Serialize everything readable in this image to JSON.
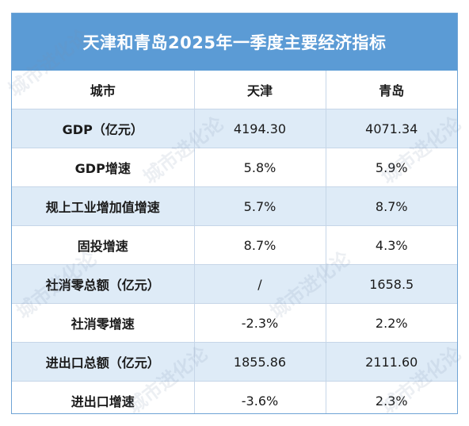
{
  "title": "天津和青岛2025年一季度主要经济指标",
  "header": {
    "col1": "城市",
    "col2": "天津",
    "col3": "青岛"
  },
  "rows": [
    {
      "label": "GDP（亿元）",
      "tianjin": "4194.30",
      "qingdao": "4071.34"
    },
    {
      "label": "GDP增速",
      "tianjin": "5.8%",
      "qingdao": "5.9%"
    },
    {
      "label": "规上工业增加值增速",
      "tianjin": "5.7%",
      "qingdao": "8.7%"
    },
    {
      "label": "固投增速",
      "tianjin": "8.7%",
      "qingdao": "4.3%"
    },
    {
      "label": "社消零总额（亿元）",
      "tianjin": "/",
      "qingdao": "1658.5"
    },
    {
      "label": "社消零增速",
      "tianjin": "-2.3%",
      "qingdao": "2.2%"
    },
    {
      "label": "进出口总额（亿元）",
      "tianjin": "1855.86",
      "qingdao": "2111.60"
    },
    {
      "label": "进出口增速",
      "tianjin": "-3.6%",
      "qingdao": "2.3%"
    }
  ],
  "watermark": "城市进化论"
}
